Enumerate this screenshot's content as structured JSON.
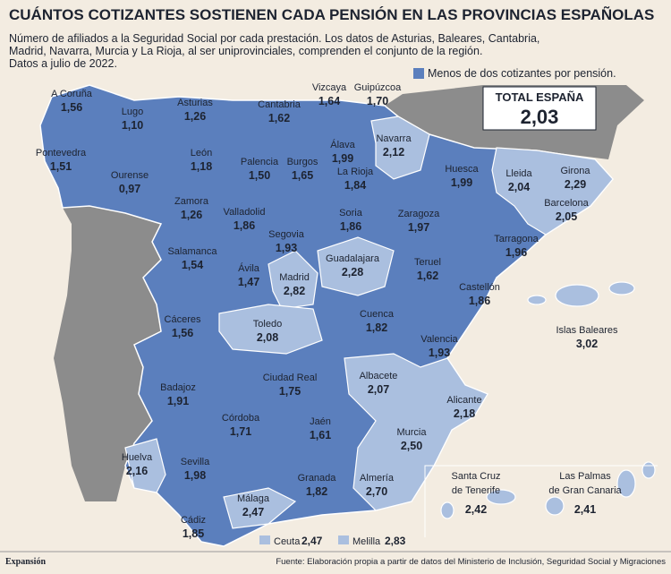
{
  "header": {
    "title": "CUÁNTOS COTIZANTES SOSTIENEN CADA PENSIÓN EN LAS PROVINCIAS ESPAÑOLAS",
    "subtitle": [
      "Número de afiliados a la Seguridad Social por cada prestación. Los datos de Asturias, Baleares, Cantabria,",
      "Madrid, Navarra, Murcia y La Rioja, al ser uniprovinciales, comprenden el conjunto de la región.",
      "Datos a julio de 2022."
    ]
  },
  "legend": "Menos de dos cotizantes por pensión.",
  "total": {
    "label": "TOTAL ESPAÑA",
    "value": "2,03"
  },
  "provinces": [
    {
      "name": "A Coruña",
      "value": "1,56"
    },
    {
      "name": "Lugo",
      "value": "1,10"
    },
    {
      "name": "Asturias",
      "value": "1,26"
    },
    {
      "name": "Cantabria",
      "value": "1,62"
    },
    {
      "name": "Vizcaya",
      "value": "1,64"
    },
    {
      "name": "Guipúzcoa",
      "value": "1,70"
    },
    {
      "name": "Pontevedra",
      "value": "1,51"
    },
    {
      "name": "Ourense",
      "value": "0,97"
    },
    {
      "name": "León",
      "value": "1,18"
    },
    {
      "name": "Palencia",
      "value": "1,50"
    },
    {
      "name": "Burgos",
      "value": "1,65"
    },
    {
      "name": "Álava",
      "value": "1,99"
    },
    {
      "name": "Navarra",
      "value": "2,12"
    },
    {
      "name": "La Rioja",
      "value": "1,84"
    },
    {
      "name": "Huesca",
      "value": "1,99"
    },
    {
      "name": "Lleida",
      "value": "2,04"
    },
    {
      "name": "Girona",
      "value": "2,29"
    },
    {
      "name": "Barcelona",
      "value": "2,05"
    },
    {
      "name": "Zamora",
      "value": "1,26"
    },
    {
      "name": "Valladolid",
      "value": "1,86"
    },
    {
      "name": "Soria",
      "value": "1,86"
    },
    {
      "name": "Zaragoza",
      "value": "1,97"
    },
    {
      "name": "Segovia",
      "value": "1,93"
    },
    {
      "name": "Tarragona",
      "value": "1,96"
    },
    {
      "name": "Salamanca",
      "value": "1,54"
    },
    {
      "name": "Guadalajara",
      "value": "2,28"
    },
    {
      "name": "Ávila",
      "value": "1,47"
    },
    {
      "name": "Madrid",
      "value": "2,82"
    },
    {
      "name": "Teruel",
      "value": "1,62"
    },
    {
      "name": "Castellón",
      "value": "1,86"
    },
    {
      "name": "Cuenca",
      "value": "1,82"
    },
    {
      "name": "Cáceres",
      "value": "1,56"
    },
    {
      "name": "Toledo",
      "value": "2,08"
    },
    {
      "name": "Islas Baleares",
      "value": "3,02"
    },
    {
      "name": "Valencia",
      "value": "1,93"
    },
    {
      "name": "Ciudad Real",
      "value": "1,75"
    },
    {
      "name": "Albacete",
      "value": "2,07"
    },
    {
      "name": "Badajoz",
      "value": "1,91"
    },
    {
      "name": "Alicante",
      "value": "2,18"
    },
    {
      "name": "Córdoba",
      "value": "1,71"
    },
    {
      "name": "Jaén",
      "value": "1,61"
    },
    {
      "name": "Murcia",
      "value": "2,50"
    },
    {
      "name": "Huelva",
      "value": "2,16"
    },
    {
      "name": "Sevilla",
      "value": "1,98"
    },
    {
      "name": "Granada",
      "value": "1,82"
    },
    {
      "name": "Almería",
      "value": "2,70"
    },
    {
      "name": "Málaga",
      "value": "2,47"
    },
    {
      "name": "Cádiz",
      "value": "1,85"
    }
  ],
  "canarias": [
    {
      "name": [
        "Santa Cruz",
        "de Tenerife"
      ],
      "value": "2,42"
    },
    {
      "name": [
        "Las Palmas",
        "de Gran Canaria"
      ],
      "value": "2,41"
    }
  ],
  "cities": [
    {
      "name": "Ceuta",
      "value": "2,47"
    },
    {
      "name": "Melilla",
      "value": "2,83"
    }
  ],
  "footer": {
    "brand": "Expansión",
    "source": "Fuente: Elaboración propia a partir de datos del Ministerio de Inclusión, Seguridad Social y Migraciones"
  }
}
